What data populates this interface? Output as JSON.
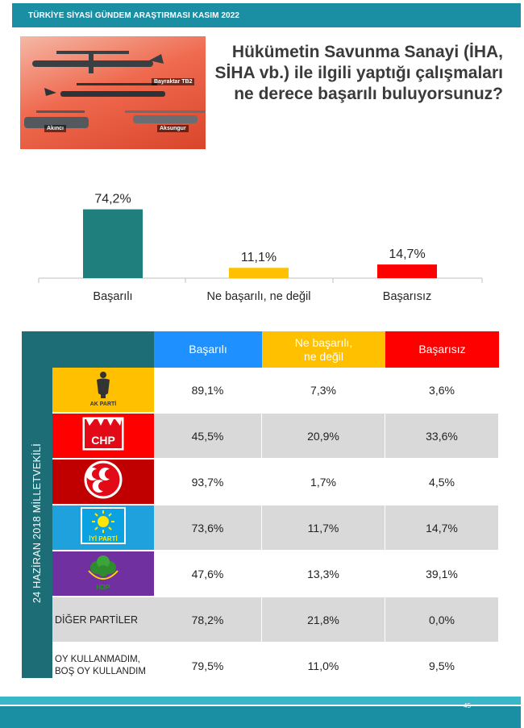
{
  "header": {
    "title": "TÜRKİYE SİYASİ GÜNDEM ARAŞTIRMASI KASIM 2022"
  },
  "hero": {
    "labels": [
      "Bayraktar TB2",
      "Akıncı",
      "Aksungur"
    ]
  },
  "question": "Hükümetin Savunma Sanayi (İHA, SİHA vb.) ile ilgili yaptığı çalışmaları ne derece başarılı buluyorsunuz?",
  "colors": {
    "teal": "#1e7f7d",
    "yellow": "#ffc000",
    "red": "#ff0000",
    "header_blue": "#1e90ff",
    "row_alt": "#d9d9d9",
    "side_teal": "#1c6d76"
  },
  "chart_data": {
    "type": "bar",
    "categories": [
      "Başarılı",
      "Ne başarılı, ne değil",
      "Başarısız"
    ],
    "values": [
      74.2,
      11.1,
      14.7
    ],
    "value_labels": [
      "74,2%",
      "11,1%",
      "14,7%"
    ],
    "bar_colors": [
      "#1e7f7d",
      "#ffc000",
      "#ff0000"
    ],
    "title": "",
    "xlabel": "",
    "ylabel": "",
    "ylim": [
      0,
      80
    ]
  },
  "table": {
    "headers": [
      "Başarılı",
      "Ne başarılı,\nne değil",
      "Başarısız"
    ],
    "side_label": "24 HAZİRAN 2018 MİLLETVEKİLİ",
    "rows": [
      {
        "party": "AK PARTİ",
        "logo": "akp-logo-icon",
        "values": [
          "89,1%",
          "7,3%",
          "3,6%"
        ]
      },
      {
        "party": "CHP",
        "logo": "chp-logo-icon",
        "values": [
          "45,5%",
          "20,9%",
          "33,6%"
        ]
      },
      {
        "party": "MHP",
        "logo": "mhp-logo-icon",
        "values": [
          "93,7%",
          "1,7%",
          "4,5%"
        ]
      },
      {
        "party": "İYİ PARTİ",
        "logo": "iyi-logo-icon",
        "values": [
          "73,6%",
          "11,7%",
          "14,7%"
        ]
      },
      {
        "party": "HDP",
        "logo": "hdp-logo-icon",
        "values": [
          "47,6%",
          "13,3%",
          "39,1%"
        ]
      },
      {
        "party": "DİĞER PARTİLER",
        "logo": "",
        "values": [
          "78,2%",
          "21,8%",
          "0,0%"
        ]
      },
      {
        "party": "OY KULLANMADIM, BOŞ OY KULLANDIM",
        "logo": "",
        "values": [
          "79,5%",
          "11,0%",
          "9,5%"
        ]
      }
    ]
  },
  "footer": {
    "page_number": "45"
  }
}
